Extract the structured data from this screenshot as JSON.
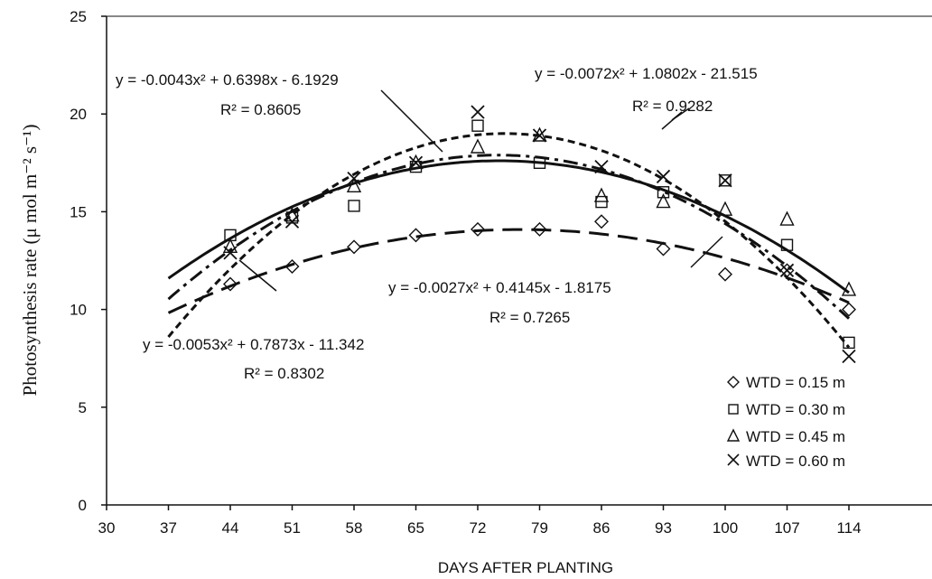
{
  "chart_data": {
    "type": "scatter",
    "xlabel": "DAYS AFTER PLANTING",
    "ylabel": "Photosynthesis rate (μ mol m⁻² s⁻¹)",
    "xlim": [
      30,
      114
    ],
    "ylim": [
      0,
      25
    ],
    "x_ticks": [
      "30",
      "37",
      "44",
      "51",
      "58",
      "65",
      "72",
      "79",
      "86",
      "93",
      "100",
      "107",
      "114"
    ],
    "y_ticks": [
      "0",
      "5",
      "10",
      "15",
      "20",
      "25"
    ],
    "legend_position": "bottom-right",
    "series": [
      {
        "name": "WTD = 0.15 m",
        "marker": "diamond",
        "x": [
          44,
          51,
          58,
          65,
          72,
          79,
          86,
          93,
          100,
          107,
          114
        ],
        "y": [
          11.3,
          12.2,
          13.2,
          13.8,
          14.1,
          14.1,
          14.5,
          13.1,
          11.8,
          12.0,
          10.0
        ],
        "fit": {
          "a": -0.0027,
          "b": 0.4145,
          "c": -1.8175,
          "style": "long-dash"
        }
      },
      {
        "name": "WTD = 0.30 m",
        "marker": "square",
        "x": [
          44,
          51,
          58,
          65,
          72,
          79,
          86,
          93,
          100,
          107,
          114
        ],
        "y": [
          13.8,
          14.7,
          15.3,
          17.3,
          19.4,
          17.5,
          15.5,
          16.0,
          16.6,
          13.3,
          8.3
        ],
        "fit": {
          "a": -0.0053,
          "b": 0.7873,
          "c": -11.342,
          "style": "dash-dot"
        }
      },
      {
        "name": "WTD = 0.45 m",
        "marker": "triangle",
        "x": [
          44,
          51,
          58,
          65,
          72,
          79,
          86,
          93,
          100,
          107,
          114
        ],
        "y": [
          13.2,
          14.8,
          16.3,
          17.5,
          18.3,
          18.9,
          15.8,
          15.5,
          15.1,
          14.6,
          11.0
        ],
        "fit": {
          "a": -0.0043,
          "b": 0.6398,
          "c": -6.1929,
          "style": "solid"
        }
      },
      {
        "name": "WTD = 0.60 m",
        "marker": "x",
        "x": [
          44,
          51,
          58,
          65,
          72,
          79,
          86,
          93,
          100,
          107,
          114
        ],
        "y": [
          12.9,
          14.5,
          16.7,
          17.5,
          20.1,
          18.9,
          17.3,
          16.8,
          16.6,
          12.0,
          7.6
        ],
        "fit": {
          "a": -0.0072,
          "b": 1.0802,
          "c": -21.515,
          "style": "short-dash"
        }
      }
    ],
    "annotations": [
      {
        "equation": "y = -0.0043x² + 0.6398x - 6.1929",
        "r2": "R² = 0.8605"
      },
      {
        "equation": "y = -0.0072x² + 1.0802x - 21.515",
        "r2": "R² = 0.9282"
      },
      {
        "equation": "y = -0.0027x² + 0.4145x - 1.8175",
        "r2": "R² = 0.7265"
      },
      {
        "equation": "y = -0.0053x² + 0.7873x - 11.342",
        "r2": "R² = 0.8302"
      }
    ]
  }
}
